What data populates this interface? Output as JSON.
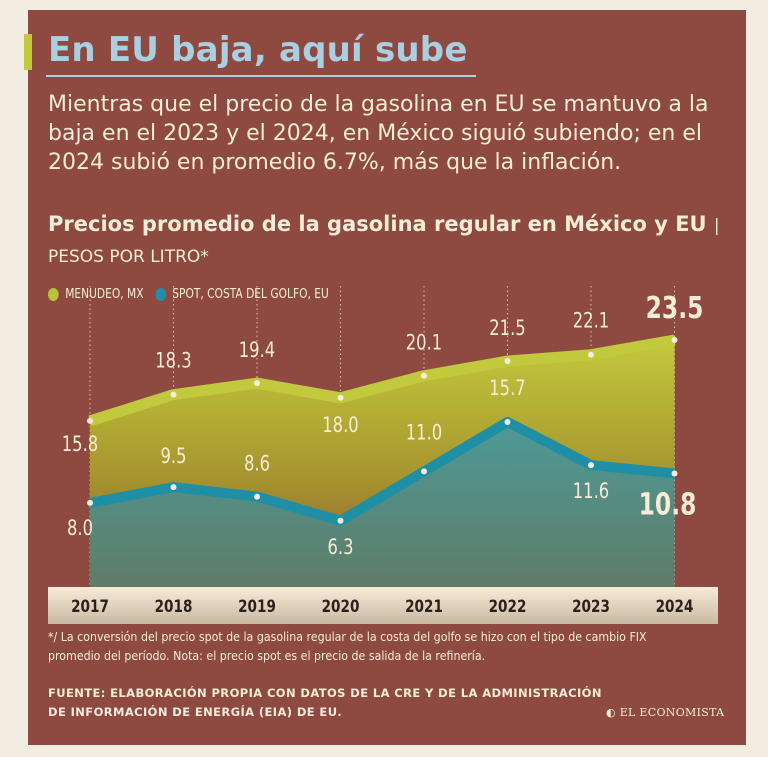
{
  "header": {
    "title": "En EU baja, aquí sube",
    "subtitle": "Mientras que el precio de la gasolina en EU se mantuvo a la baja en el 2023 y el 2024, en México siguió subiendo; en el 2024 subió en promedio 6.7%, más que la inflación."
  },
  "chart_data": {
    "type": "area",
    "title": "Precios promedio de la gasolina regular en México y EU",
    "units": "| PESOS POR LITRO*",
    "categories": [
      "2017",
      "2018",
      "2019",
      "2020",
      "2021",
      "2022",
      "2023",
      "2024"
    ],
    "series": [
      {
        "name": "MENUDEO, MX",
        "color": "#b9c23a",
        "values": [
          15.8,
          18.3,
          19.4,
          18.0,
          20.1,
          21.5,
          22.1,
          23.5
        ],
        "labels": [
          "15.8",
          "18.3",
          "19.4",
          "18.0",
          "20.1",
          "21.5",
          "22.1",
          "23.5"
        ]
      },
      {
        "name": "SPOT, COSTA DEL GOLFO, EU",
        "color": "#1f8fa6",
        "values": [
          8.0,
          9.5,
          8.6,
          6.3,
          11.0,
          15.7,
          11.6,
          10.8
        ],
        "labels": [
          "8.0",
          "9.5",
          "8.6",
          "6.3",
          "11.0",
          "15.7",
          "11.6",
          "10.8"
        ]
      }
    ],
    "ylim": [
      0,
      27
    ],
    "grid": "vertical dotted",
    "legend": "top-left"
  },
  "footer": {
    "footnote": "*/ La conversión del precio spot de la gasolina regular de la costa del golfo se hizo con el tipo de cambio FIX promedio del período. Nota: el precio spot es el precio de salida de la refinería.",
    "source": "FUENTE: ELABORACIÓN PROPIA CON DATOS DE LA CRE Y DE LA ADMINISTRACIÓN DE INFORMACIÓN DE ENERGÍA (EIA) DE EU.",
    "logo": "EL ECONOMISTA"
  },
  "colors": {
    "background": "#8e4a41",
    "title": "#a9cfe0",
    "text": "#f6ecd8",
    "accent": "#c3c93c"
  }
}
